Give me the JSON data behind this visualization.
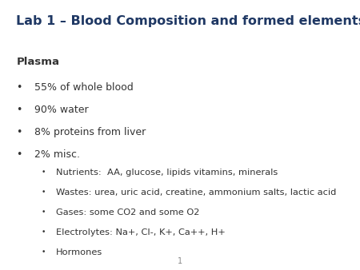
{
  "title": "Lab 1 – Blood Composition and formed elements",
  "title_color": "#1F3864",
  "title_fontsize": 11.5,
  "title_bold": true,
  "background_color": "#ffffff",
  "section_heading": "Plasma",
  "section_heading_color": "#333333",
  "section_heading_bold": true,
  "section_heading_fontsize": 9.5,
  "bullet_color": "#333333",
  "bullet_fontsize": 9.0,
  "sub_bullet_fontsize": 8.2,
  "bullets": [
    "55% of whole blood",
    "90% water",
    "8% proteins from liver",
    "2% misc."
  ],
  "sub_bullets": [
    "Nutrients:  AA, glucose, lipids vitamins, minerals",
    "Wastes: urea, uric acid, creatine, ammonium salts, lactic acid",
    "Gases: some CO2 and some O2",
    "Electrolytes: Na+, Cl-, K+, Ca++, H+",
    "Hormones"
  ],
  "page_number": "1",
  "page_number_color": "#888888",
  "page_number_fontsize": 7
}
